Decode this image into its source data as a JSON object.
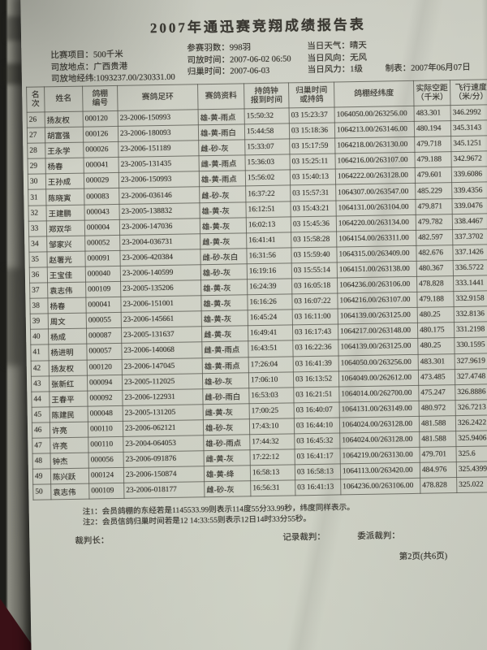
{
  "document": {
    "title": "2007年通迅赛竞翔成绩报告表",
    "info": {
      "left": [
        "比赛项目：500千米",
        "司放地点：广西贵港",
        "司放地经纬:1093237.00/230331.00"
      ],
      "middle": [
        "参赛羽数：998羽",
        "司放时间：2007-06-02 06:50",
        "归巢时间：2007-06-03"
      ],
      "right": [
        "当日天气：晴天",
        "当日风向：无风",
        "当日风力：1级"
      ],
      "made_date": "制表：2007年06月07日"
    },
    "table": {
      "headers": [
        "名次",
        "姓名",
        "鸽棚\n编号",
        "赛鸽足环",
        "赛鸽资料",
        "持鸽钟\n报到时间",
        "归巢时间\n或持鸽",
        "鸽棚经纬度",
        "实际空距\n（千米）",
        "飞行速度\n（米/分）"
      ],
      "rows": [
        [
          "26",
          "扬友权",
          "000120",
          "23-2006-150993",
          "雄-黄-雨点",
          "15:50:32",
          "03 15:23:37",
          "1064050.00/263256.00",
          "483.301",
          "346.2992"
        ],
        [
          "27",
          "胡富强",
          "000126",
          "23-2006-180093",
          "雄-黄-雨白",
          "15:44:58",
          "03 15:18:36",
          "1064213.00/263146.00",
          "480.194",
          "345.3143"
        ],
        [
          "28",
          "王永学",
          "000026",
          "23-2006-151189",
          "雌-砂-灰",
          "15:33:07",
          "03 15:17:59",
          "1064218.00/263130.00",
          "479.718",
          "345.1251"
        ],
        [
          "29",
          "杨春",
          "000041",
          "23-2005-131435",
          "雌-黄-雨点",
          "15:36:03",
          "03 15:25:11",
          "1064216.00/263107.00",
          "479.188",
          "342.9672"
        ],
        [
          "30",
          "王孙成",
          "000029",
          "23-2006-150993",
          "雄-黄-雨点",
          "15:56:02",
          "03 15:40:13",
          "1064222.00/263128.00",
          "479.601",
          "339.6086"
        ],
        [
          "31",
          "陈晓寅",
          "000083",
          "23-2006-036146",
          "雌-砂-灰",
          "16:37:22",
          "03 15:57:31",
          "1064307.00/263547.00",
          "485.229",
          "339.4356"
        ],
        [
          "32",
          "王建鹏",
          "000043",
          "23-2005-138832",
          "雄-黄-灰",
          "16:12:51",
          "03 15:43:21",
          "1064131.00/263104.00",
          "479.871",
          "339.0476"
        ],
        [
          "33",
          "郑双华",
          "000004",
          "23-2006-147036",
          "雄-黄-灰",
          "16:02:13",
          "03 15:45:36",
          "1064220.00/263134.00",
          "479.782",
          "338.4467"
        ],
        [
          "34",
          "邹家兴",
          "000052",
          "23-2004-036731",
          "雌-黄-灰",
          "16:41:41",
          "03 15:58:28",
          "1064154.00/263311.00",
          "482.597",
          "337.3702"
        ],
        [
          "35",
          "赵署光",
          "000091",
          "23-2006-420384",
          "雌-砂-灰白",
          "16:31:56",
          "03 15:59:40",
          "1064315.00/263409.00",
          "482.676",
          "337.1426"
        ],
        [
          "36",
          "王宝佳",
          "000040",
          "23-2006-140599",
          "雄-砂-灰",
          "16:19:16",
          "03 15:55:14",
          "1064151.00/263138.00",
          "480.367",
          "336.5722"
        ],
        [
          "37",
          "袁志伟",
          "000109",
          "23-2005-135206",
          "雄-黄-灰",
          "16:24:39",
          "03 16:05:18",
          "1064236.00/263106.00",
          "478.828",
          "333.1441"
        ],
        [
          "38",
          "杨春",
          "000041",
          "23-2006-151001",
          "雄-黄-灰",
          "16:16:26",
          "03 16:07:22",
          "1064216.00/263107.00",
          "479.188",
          "332.9158"
        ],
        [
          "39",
          "周文",
          "000055",
          "23-2006-145661",
          "雄-黄-灰",
          "16:45:24",
          "03 16:11:00",
          "1064139.00/263125.00",
          "480.25",
          "332.8136"
        ],
        [
          "40",
          "杨成",
          "000087",
          "23-2005-131637",
          "雌-黄-灰",
          "16:49:41",
          "03 16:17:43",
          "1064217.00/263148.00",
          "480.175",
          "331.2198"
        ],
        [
          "41",
          "杨进明",
          "000057",
          "23-2006-140068",
          "雌-黄-雨点",
          "16:43:51",
          "03 16:22:36",
          "1064139.00/263125.00",
          "480.25",
          "330.1595"
        ],
        [
          "42",
          "扬友权",
          "000120",
          "23-2006-147045",
          "雄-黄-雨点",
          "17:26:04",
          "03 16:41:39",
          "1064050.00/263256.00",
          "483.301",
          "327.9619"
        ],
        [
          "43",
          "张新红",
          "000094",
          "23-2005-112025",
          "雄-砂-灰",
          "17:06:10",
          "03 16:13:52",
          "1064049.00/262612.00",
          "473.485",
          "327.4748"
        ],
        [
          "44",
          "王春平",
          "000092",
          "23-2006-122931",
          "雌-砂-雨白",
          "16:53:03",
          "03 16:21:51",
          "1064014.00/262700.00",
          "475.247",
          "326.8886"
        ],
        [
          "45",
          "陈建民",
          "000048",
          "23-2005-131205",
          "雌-黄-灰",
          "17:00:25",
          "03 16:40:07",
          "1064131.00/263149.00",
          "480.972",
          "326.7213"
        ],
        [
          "46",
          "许亮",
          "000110",
          "23-2006-062121",
          "雄-砂-灰",
          "17:43:10",
          "03 16:44:10",
          "1064024.00/263128.00",
          "481.588",
          "326.2422"
        ],
        [
          "47",
          "许亮",
          "000110",
          "23-2004-064053",
          "雄-砂-雨点",
          "17:44:32",
          "03 16:45:32",
          "1064024.00/263128.00",
          "481.588",
          "325.9406"
        ],
        [
          "48",
          "钟杰",
          "000056",
          "23-2006-091876",
          "雌-黄-灰",
          "17:22:12",
          "03 16:41:17",
          "1064219.00/263130.00",
          "479.701",
          "325.6"
        ],
        [
          "49",
          "陈兴跃",
          "000124",
          "23-2006-150874",
          "雄-黄-绛",
          "16:58:13",
          "03 16:58:13",
          "1064113.00/263420.00",
          "484.976",
          "325.4399"
        ],
        [
          "50",
          "袁志伟",
          "000109",
          "23-2006-018177",
          "雌-砂-灰",
          "16:56:31",
          "03 16:41:13",
          "1064236.00/263106.00",
          "478.828",
          "325.022"
        ]
      ]
    },
    "notes": [
      "注1：会员鸽棚的东经若是1145533.99则表示114度55分33.99秒，纬度同样表示。",
      "注2：会员信鸽归巢时间若是12 14:33:55则表示12日14时33分55秒。"
    ],
    "signatures": {
      "chief": "裁判长：",
      "recorder": "记录裁判：",
      "delegate": "委派裁判："
    },
    "page_indicator": "第2页(共6页)",
    "colors": {
      "paper": "#cbcdc2",
      "ink": "#3a3832",
      "table_border": "#52524a",
      "background": "#171714",
      "desk_corner": "#3a1016"
    }
  }
}
